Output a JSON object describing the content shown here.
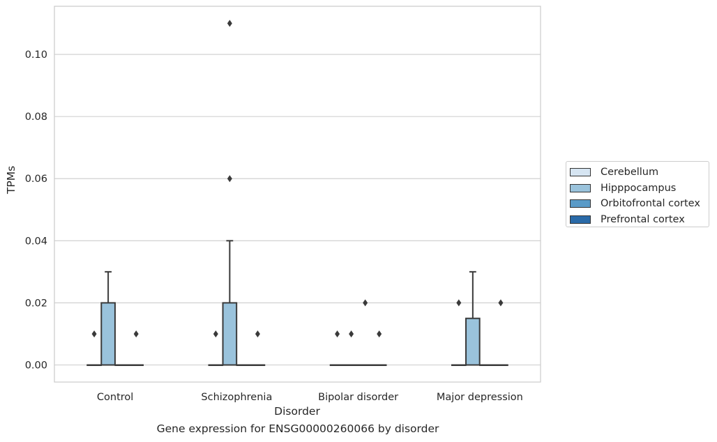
{
  "chart_data": {
    "type": "box",
    "xlabel": "Disorder",
    "ylabel": "TPMs",
    "caption": "Gene expression for ENSG00000260066 by disorder",
    "ylim": [
      -0.0055,
      0.1155
    ],
    "yticks": [
      "0.00",
      "0.02",
      "0.04",
      "0.06",
      "0.08",
      "0.10"
    ],
    "grid": true,
    "legend_position": "right",
    "categories": [
      "Control",
      "Schizophrenia",
      "Bipolar disorder",
      "Major depression"
    ],
    "series": [
      {
        "name": "Cerebellum",
        "color": "#d6e5f2",
        "boxes": [
          {
            "min": 0,
            "q1": 0,
            "median": 0,
            "q3": 0,
            "max": 0,
            "outliers": [
              0.01
            ]
          },
          {
            "min": 0,
            "q1": 0,
            "median": 0,
            "q3": 0,
            "max": 0,
            "outliers": [
              0.01
            ]
          },
          {
            "min": 0,
            "q1": 0,
            "median": 0,
            "q3": 0,
            "max": 0,
            "outliers": [
              0.01
            ]
          },
          {
            "min": 0,
            "q1": 0,
            "median": 0,
            "q3": 0,
            "max": 0,
            "outliers": [
              0.02
            ]
          }
        ]
      },
      {
        "name": "Hipppocampus",
        "color": "#9ac3dc",
        "boxes": [
          {
            "min": 0,
            "q1": 0,
            "median": 0,
            "q3": 0.02,
            "max": 0.03,
            "outliers": []
          },
          {
            "min": 0,
            "q1": 0,
            "median": 0,
            "q3": 0.02,
            "max": 0.04,
            "outliers": [
              0.06,
              0.11
            ]
          },
          {
            "min": 0,
            "q1": 0,
            "median": 0,
            "q3": 0,
            "max": 0,
            "outliers": [
              0.01
            ]
          },
          {
            "min": 0,
            "q1": 0,
            "median": 0,
            "q3": 0.015,
            "max": 0.03,
            "outliers": []
          }
        ]
      },
      {
        "name": "Orbitofrontal cortex",
        "color": "#5a9bc8",
        "boxes": [
          {
            "min": 0,
            "q1": 0,
            "median": 0,
            "q3": 0,
            "max": 0,
            "outliers": []
          },
          {
            "min": 0,
            "q1": 0,
            "median": 0,
            "q3": 0,
            "max": 0,
            "outliers": []
          },
          {
            "min": 0,
            "q1": 0,
            "median": 0,
            "q3": 0,
            "max": 0,
            "outliers": [
              0.02
            ]
          },
          {
            "min": 0,
            "q1": 0,
            "median": 0,
            "q3": 0,
            "max": 0,
            "outliers": []
          }
        ]
      },
      {
        "name": "Prefrontal cortex",
        "color": "#2a6aa8",
        "boxes": [
          {
            "min": 0,
            "q1": 0,
            "median": 0,
            "q3": 0,
            "max": 0,
            "outliers": [
              0.01
            ]
          },
          {
            "min": 0,
            "q1": 0,
            "median": 0,
            "q3": 0,
            "max": 0,
            "outliers": [
              0.01
            ]
          },
          {
            "min": 0,
            "q1": 0,
            "median": 0,
            "q3": 0,
            "max": 0,
            "outliers": [
              0.01
            ]
          },
          {
            "min": 0,
            "q1": 0,
            "median": 0,
            "q3": 0,
            "max": 0,
            "outliers": [
              0.02
            ]
          }
        ]
      }
    ]
  }
}
